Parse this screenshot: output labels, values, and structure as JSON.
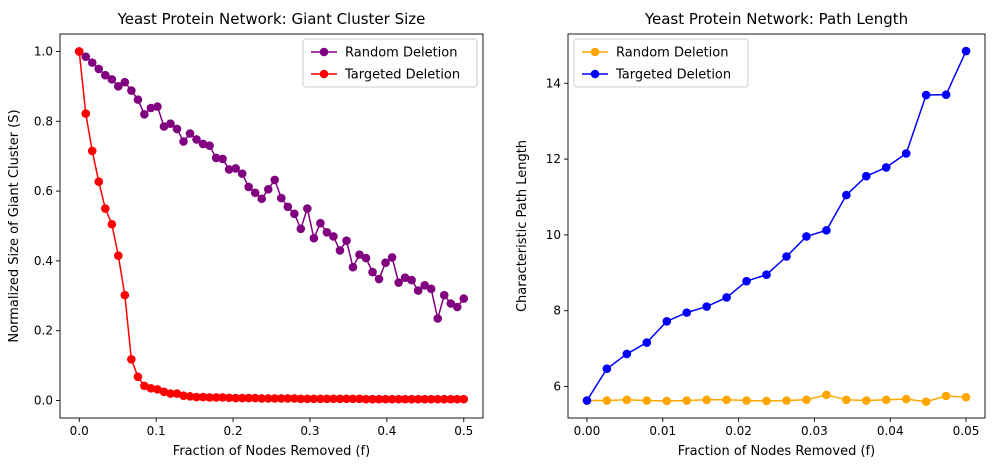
{
  "chart_data": [
    {
      "type": "line",
      "title": "Yeast Protein Network: Giant Cluster Size",
      "xlabel": "Fraction of Nodes Removed (f)",
      "ylabel": "Normalized Size of Giant Cluster (S)",
      "xlim": [
        -0.025,
        0.525
      ],
      "ylim": [
        -0.05,
        1.05
      ],
      "xticks": [
        0.0,
        0.1,
        0.2,
        0.3,
        0.4,
        0.5
      ],
      "xtick_labels": [
        "0.0",
        "0.1",
        "0.2",
        "0.3",
        "0.4",
        "0.5"
      ],
      "yticks": [
        0.0,
        0.2,
        0.4,
        0.6,
        0.8,
        1.0
      ],
      "ytick_labels": [
        "0.0",
        "0.2",
        "0.4",
        "0.6",
        "0.8",
        "1.0"
      ],
      "grid": false,
      "legend": "top-right",
      "series": [
        {
          "name": "Random Deletion",
          "color": "#800080",
          "x": [
            0.0,
            0.0085,
            0.0169,
            0.0254,
            0.0339,
            0.0424,
            0.0508,
            0.0593,
            0.0678,
            0.0763,
            0.0847,
            0.0932,
            0.1017,
            0.1102,
            0.1186,
            0.1271,
            0.1356,
            0.1441,
            0.1525,
            0.161,
            0.1695,
            0.178,
            0.1864,
            0.1949,
            0.2034,
            0.2119,
            0.2203,
            0.2288,
            0.2373,
            0.2458,
            0.2542,
            0.2627,
            0.2712,
            0.2797,
            0.2881,
            0.2966,
            0.3051,
            0.3136,
            0.322,
            0.3305,
            0.339,
            0.3475,
            0.3559,
            0.3644,
            0.3729,
            0.3814,
            0.3898,
            0.3983,
            0.4068,
            0.4153,
            0.4237,
            0.4322,
            0.4407,
            0.4492,
            0.4576,
            0.4661,
            0.4746,
            0.4831,
            0.4915,
            0.5
          ],
          "values": [
            1.0,
            0.985,
            0.968,
            0.95,
            0.932,
            0.92,
            0.9,
            0.912,
            0.888,
            0.862,
            0.82,
            0.838,
            0.842,
            0.785,
            0.793,
            0.778,
            0.742,
            0.765,
            0.748,
            0.735,
            0.73,
            0.695,
            0.692,
            0.662,
            0.665,
            0.65,
            0.612,
            0.595,
            0.578,
            0.605,
            0.632,
            0.58,
            0.555,
            0.535,
            0.492,
            0.55,
            0.465,
            0.508,
            0.482,
            0.47,
            0.43,
            0.458,
            0.382,
            0.418,
            0.408,
            0.368,
            0.348,
            0.395,
            0.41,
            0.338,
            0.352,
            0.345,
            0.315,
            0.33,
            0.32,
            0.235,
            0.302,
            0.278,
            0.268,
            0.292
          ]
        },
        {
          "name": "Targeted Deletion",
          "color": "#ff0000",
          "x": [
            0.0,
            0.0085,
            0.0169,
            0.0254,
            0.0339,
            0.0424,
            0.0508,
            0.0593,
            0.0678,
            0.0763,
            0.0847,
            0.0932,
            0.1017,
            0.1102,
            0.1186,
            0.1271,
            0.1356,
            0.1441,
            0.1525,
            0.161,
            0.1695,
            0.178,
            0.1864,
            0.1949,
            0.2034,
            0.2119,
            0.2203,
            0.2288,
            0.2373,
            0.2458,
            0.2542,
            0.2627,
            0.2712,
            0.2797,
            0.2881,
            0.2966,
            0.3051,
            0.3136,
            0.322,
            0.3305,
            0.339,
            0.3475,
            0.3559,
            0.3644,
            0.3729,
            0.3814,
            0.3898,
            0.3983,
            0.4068,
            0.4153,
            0.4237,
            0.4322,
            0.4407,
            0.4492,
            0.4576,
            0.4661,
            0.4746,
            0.4831,
            0.4915,
            0.5
          ],
          "values": [
            1.0,
            0.822,
            0.715,
            0.627,
            0.55,
            0.505,
            0.415,
            0.302,
            0.118,
            0.068,
            0.042,
            0.035,
            0.032,
            0.025,
            0.02,
            0.02,
            0.014,
            0.012,
            0.01,
            0.01,
            0.009,
            0.009,
            0.009,
            0.008,
            0.007,
            0.007,
            0.007,
            0.007,
            0.006,
            0.006,
            0.006,
            0.006,
            0.006,
            0.006,
            0.005,
            0.005,
            0.005,
            0.005,
            0.005,
            0.005,
            0.005,
            0.005,
            0.005,
            0.005,
            0.004,
            0.004,
            0.004,
            0.004,
            0.004,
            0.004,
            0.004,
            0.004,
            0.004,
            0.004,
            0.004,
            0.004,
            0.004,
            0.004,
            0.004,
            0.004
          ]
        }
      ]
    },
    {
      "type": "line",
      "title": "Yeast Protein Network: Path Length",
      "xlabel": "Fraction of Nodes Removed (f)",
      "ylabel": "Characteristic Path Length",
      "xlim": [
        -0.0025,
        0.0525
      ],
      "ylim": [
        5.17,
        15.3
      ],
      "xticks": [
        0.0,
        0.01,
        0.02,
        0.03,
        0.04,
        0.05
      ],
      "xtick_labels": [
        "0.00",
        "0.01",
        "0.02",
        "0.03",
        "0.04",
        "0.05"
      ],
      "yticks": [
        6,
        8,
        10,
        12,
        14
      ],
      "ytick_labels": [
        "6",
        "8",
        "10",
        "12",
        "14"
      ],
      "grid": false,
      "legend": "top-left",
      "series": [
        {
          "name": "Random Deletion",
          "color": "#ffa500",
          "x": [
            0.0,
            0.00263,
            0.00526,
            0.00789,
            0.01053,
            0.01316,
            0.01579,
            0.01842,
            0.02105,
            0.02368,
            0.02632,
            0.02895,
            0.03158,
            0.03421,
            0.03684,
            0.03947,
            0.04211,
            0.04474,
            0.04737,
            0.05
          ],
          "values": [
            5.63,
            5.63,
            5.65,
            5.63,
            5.62,
            5.63,
            5.65,
            5.65,
            5.63,
            5.62,
            5.63,
            5.65,
            5.78,
            5.65,
            5.63,
            5.65,
            5.67,
            5.6,
            5.75,
            5.72
          ]
        },
        {
          "name": "Targeted Deletion",
          "color": "#0000ff",
          "x": [
            0.0,
            0.00263,
            0.00526,
            0.00789,
            0.01053,
            0.01316,
            0.01579,
            0.01842,
            0.02105,
            0.02368,
            0.02632,
            0.02895,
            0.03158,
            0.03421,
            0.03684,
            0.03947,
            0.04211,
            0.04474,
            0.04737,
            0.05
          ],
          "values": [
            5.63,
            6.47,
            6.86,
            7.16,
            7.72,
            7.95,
            8.11,
            8.35,
            8.78,
            8.95,
            9.43,
            9.96,
            10.12,
            11.05,
            11.55,
            11.78,
            12.15,
            13.69,
            13.7,
            14.85
          ]
        }
      ]
    }
  ]
}
